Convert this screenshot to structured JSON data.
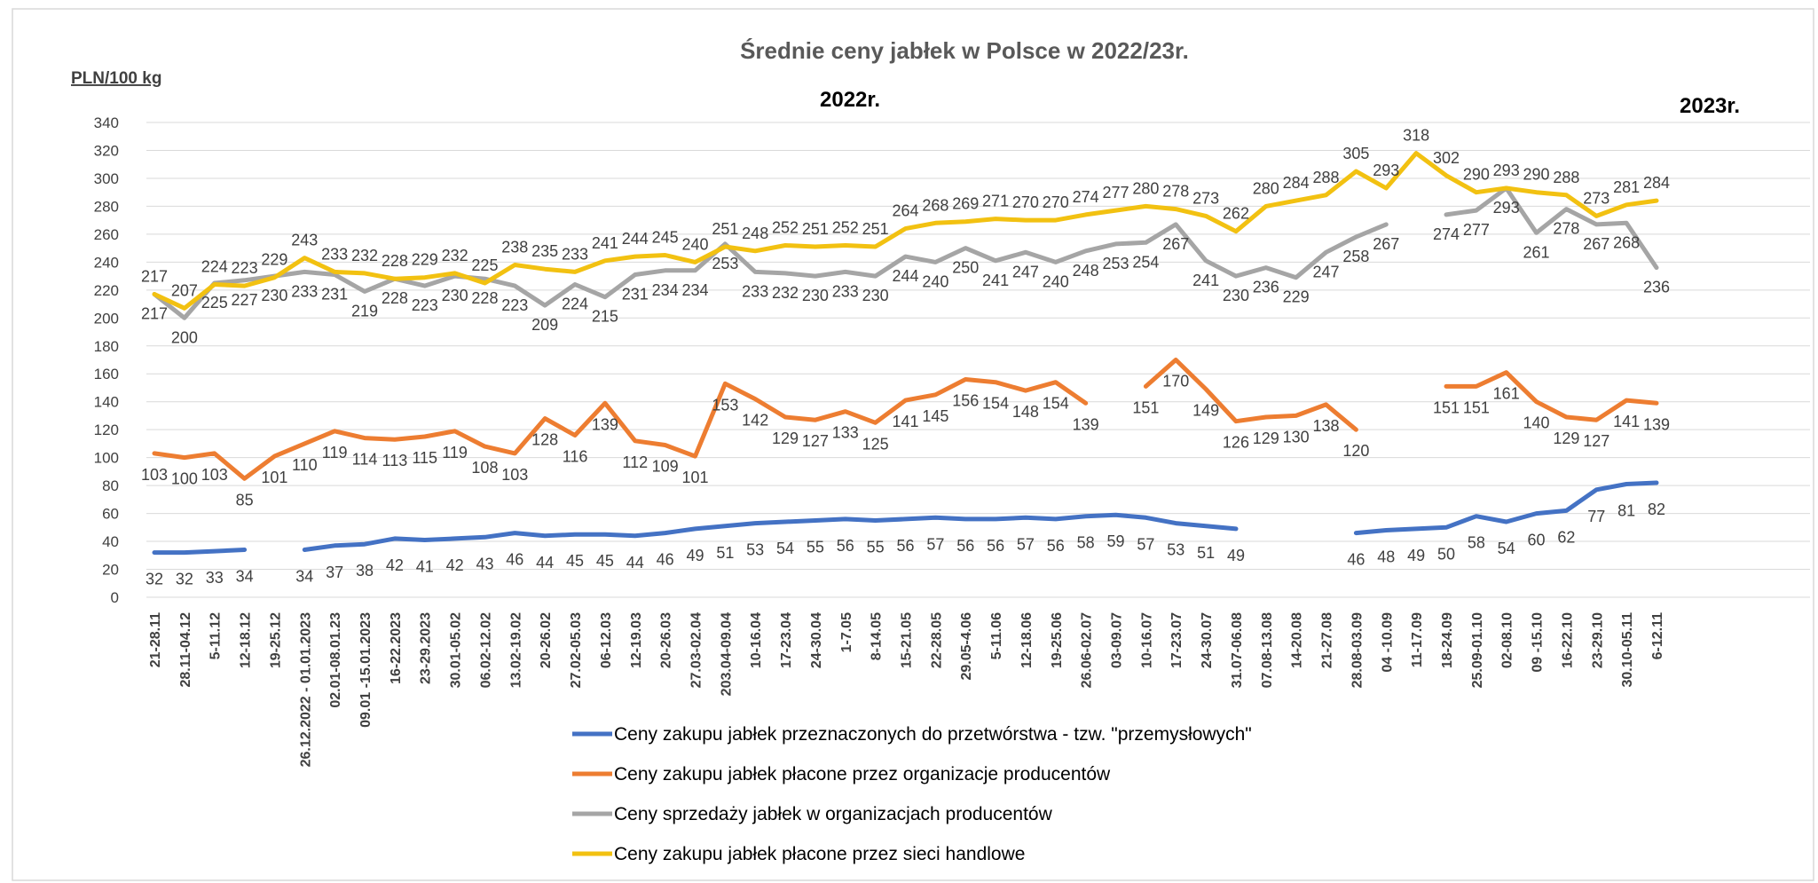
{
  "chart_data": {
    "type": "line",
    "title": "Średnie ceny jabłek w Polsce w 2022/23r.",
    "ylabel": "PLN/100 kg",
    "year_labels": [
      "2022r.",
      "2023r."
    ],
    "ylim": [
      0,
      340
    ],
    "yticks": [
      0,
      20,
      40,
      60,
      80,
      100,
      120,
      140,
      160,
      180,
      200,
      220,
      240,
      260,
      280,
      300,
      320,
      340
    ],
    "grid": true,
    "legend_position": "bottom",
    "categories": [
      "21-28.11",
      "28.11-04.12",
      "5-11.12",
      "12-18.12",
      "19-25.12",
      "26.12.2022 - 01.01.2023",
      "02.01-08.01.23",
      "09.01 -15.01.2023",
      "16-22.2023",
      "23-29.2023",
      "30.01-05.02",
      "06.02-12.02",
      "13.02-19.02",
      "20-26.02",
      "27.02-05.03",
      "06-12.03",
      "12-19.03",
      "20-26.03",
      "27.03-02.04",
      "203.04-09.04",
      "10-16.04",
      "17-23.04",
      "24-30.04",
      "1-7.05",
      "8-14.05",
      "15-21.05",
      "22-28.05",
      "29.05-4.06",
      "5-11.06",
      "12-18.06",
      "19-25.06",
      "26.06-02.07",
      "03-09.07",
      "10-16.07",
      "17-23.07",
      "24-30.07",
      "31.07-06.08",
      "07.08-13.08",
      "14-20.08",
      "21-27.08",
      "28.08-03.09",
      "04 -10.09",
      "11-17.09",
      "18-24.09",
      "25.09-01.10",
      "02-08.10",
      "09 -15.10",
      "16-22.10",
      "23-29.10",
      "30.10-05.11",
      "6-12.11"
    ],
    "series": [
      {
        "name": "Ceny zakupu jabłek przeznaczonych do przetwórstwa - tzw. \"przemysłowych\"",
        "color": "#4472C4",
        "values": [
          32,
          32,
          33,
          34,
          null,
          34,
          37,
          38,
          42,
          41,
          42,
          43,
          46,
          44,
          45,
          45,
          44,
          46,
          49,
          51,
          53,
          54,
          55,
          56,
          55,
          56,
          57,
          56,
          56,
          57,
          56,
          58,
          59,
          57,
          53,
          51,
          49,
          null,
          null,
          null,
          46,
          48,
          49,
          50,
          58,
          54,
          60,
          62,
          77,
          81,
          82
        ]
      },
      {
        "name": "Ceny zakupu jabłek płacone przez organizacje  producentów",
        "color": "#ED7D31",
        "values": [
          103,
          100,
          103,
          85,
          101,
          110,
          119,
          114,
          113,
          115,
          119,
          108,
          103,
          128,
          116,
          139,
          112,
          109,
          101,
          153,
          142,
          129,
          127,
          133,
          125,
          141,
          145,
          156,
          154,
          148,
          154,
          139,
          null,
          151,
          170,
          149,
          126,
          129,
          130,
          138,
          120,
          null,
          null,
          151,
          151,
          161,
          140,
          129,
          127,
          141,
          139
        ]
      },
      {
        "name": "Ceny sprzedaży jabłek w organizacjach  producentów",
        "color": "#A5A5A5",
        "values": [
          217,
          200,
          225,
          227,
          230,
          233,
          231,
          219,
          228,
          223,
          230,
          228,
          223,
          209,
          224,
          215,
          231,
          234,
          234,
          253,
          233,
          232,
          230,
          233,
          230,
          244,
          240,
          250,
          241,
          247,
          240,
          248,
          253,
          254,
          267,
          241,
          230,
          236,
          229,
          247,
          258,
          267,
          null,
          274,
          277,
          293,
          261,
          278,
          267,
          268,
          236
        ]
      },
      {
        "name": "Ceny zakupu jabłek płacone przez sieci handlowe",
        "color": "#F2C111",
        "values": [
          217,
          207,
          224,
          223,
          229,
          243,
          233,
          232,
          228,
          229,
          232,
          225,
          238,
          235,
          233,
          241,
          244,
          245,
          240,
          251,
          248,
          252,
          251,
          252,
          251,
          264,
          268,
          269,
          271,
          270,
          270,
          274,
          277,
          280,
          278,
          273,
          262,
          280,
          284,
          288,
          305,
          293,
          318,
          302,
          290,
          293,
          290,
          288,
          273,
          281,
          284
        ]
      }
    ]
  }
}
